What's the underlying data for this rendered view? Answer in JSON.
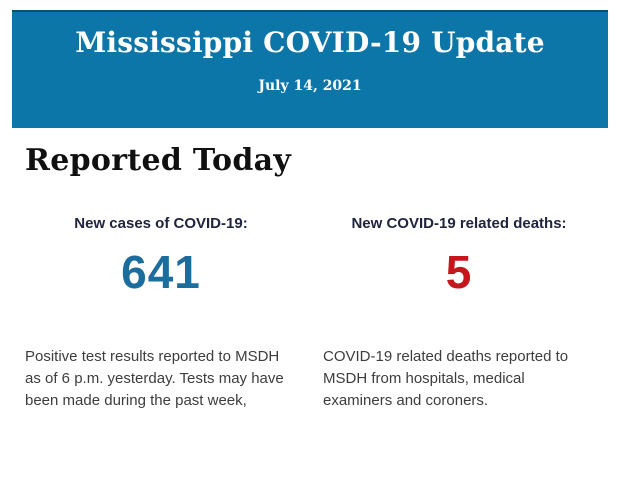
{
  "banner": {
    "title": "Mississippi COVID-19 Update",
    "date": "July 14, 2021",
    "bg_color": "#0d76a8",
    "border_top_color": "#09506e",
    "text_color": "#ffffff"
  },
  "report": {
    "heading": "Reported Today",
    "stats": [
      {
        "label": "New cases of COVID-19:",
        "value": "641",
        "value_color": "#1b6d9e",
        "description": "Positive test results reported to MSDH as of 6 p.m. yesterday. Tests may have been made during the past week,"
      },
      {
        "label": "New COVID-19 related deaths:",
        "value": "5",
        "value_color": "#c4161c",
        "description": "COVID-19 related deaths reported to MSDH from hospitals, medical examiners and coroners."
      }
    ]
  }
}
